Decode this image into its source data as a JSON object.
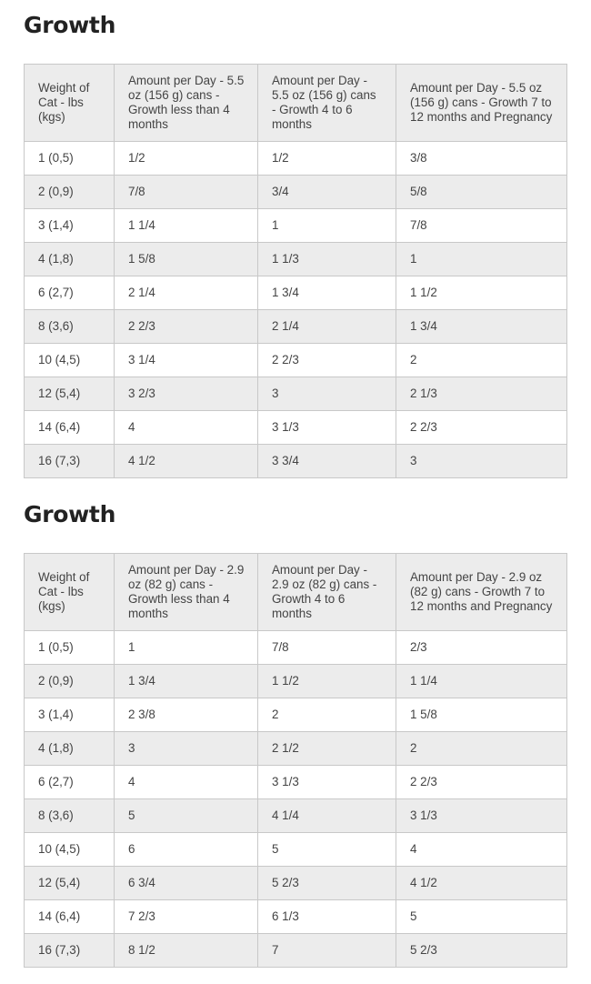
{
  "sections": [
    {
      "title": "Growth",
      "headers": [
        "Weight of Cat - lbs (kgs)",
        "Amount per Day - 5.5 oz (156 g) cans - Growth less than 4 months",
        "Amount per Day - 5.5 oz (156 g) cans - Growth 4 to 6 months",
        "Amount per Day - 5.5 oz (156 g) cans - Growth 7 to 12 months and Pregnancy"
      ],
      "rows": [
        [
          "1 (0,5)",
          "1/2",
          "1/2",
          "3/8"
        ],
        [
          "2 (0,9)",
          "7/8",
          "3/4",
          "5/8"
        ],
        [
          "3 (1,4)",
          "1 1/4",
          "1",
          "7/8"
        ],
        [
          "4 (1,8)",
          "1 5/8",
          "1 1/3",
          "1"
        ],
        [
          "6 (2,7)",
          "2 1/4",
          "1 3/4",
          "1 1/2"
        ],
        [
          "8 (3,6)",
          "2 2/3",
          "2 1/4",
          "1 3/4"
        ],
        [
          "10 (4,5)",
          "3 1/4",
          "2 2/3",
          "2"
        ],
        [
          "12 (5,4)",
          "3 2/3",
          "3",
          "2 1/3"
        ],
        [
          "14 (6,4)",
          "4",
          "3 1/3",
          "2 2/3"
        ],
        [
          "16 (7,3)",
          "4 1/2",
          "3 3/4",
          "3"
        ]
      ]
    },
    {
      "title": "Growth",
      "headers": [
        "Weight of Cat - lbs (kgs)",
        "Amount per Day - 2.9 oz (82 g) cans - Growth less than 4 months",
        "Amount per Day - 2.9 oz (82 g) cans - Growth 4 to 6 months",
        "Amount per Day - 2.9 oz (82 g) cans - Growth 7 to 12 months and Pregnancy"
      ],
      "rows": [
        [
          "1 (0,5)",
          "1",
          "7/8",
          "2/3"
        ],
        [
          "2 (0,9)",
          "1 3/4",
          "1 1/2",
          "1 1/4"
        ],
        [
          "3 (1,4)",
          "2 3/8",
          "2",
          "1 5/8"
        ],
        [
          "4 (1,8)",
          "3",
          "2 1/2",
          "2"
        ],
        [
          "6 (2,7)",
          "4",
          "3 1/3",
          "2 2/3"
        ],
        [
          "8 (3,6)",
          "5",
          "4 1/4",
          "3 1/3"
        ],
        [
          "10 (4,5)",
          "6",
          "5",
          "4"
        ],
        [
          "12 (5,4)",
          "6 3/4",
          "5 2/3",
          "4 1/2"
        ],
        [
          "14 (6,4)",
          "7 2/3",
          "6 1/3",
          "5"
        ],
        [
          "16 (7,3)",
          "8 1/2",
          "7",
          "5 2/3"
        ]
      ]
    }
  ]
}
